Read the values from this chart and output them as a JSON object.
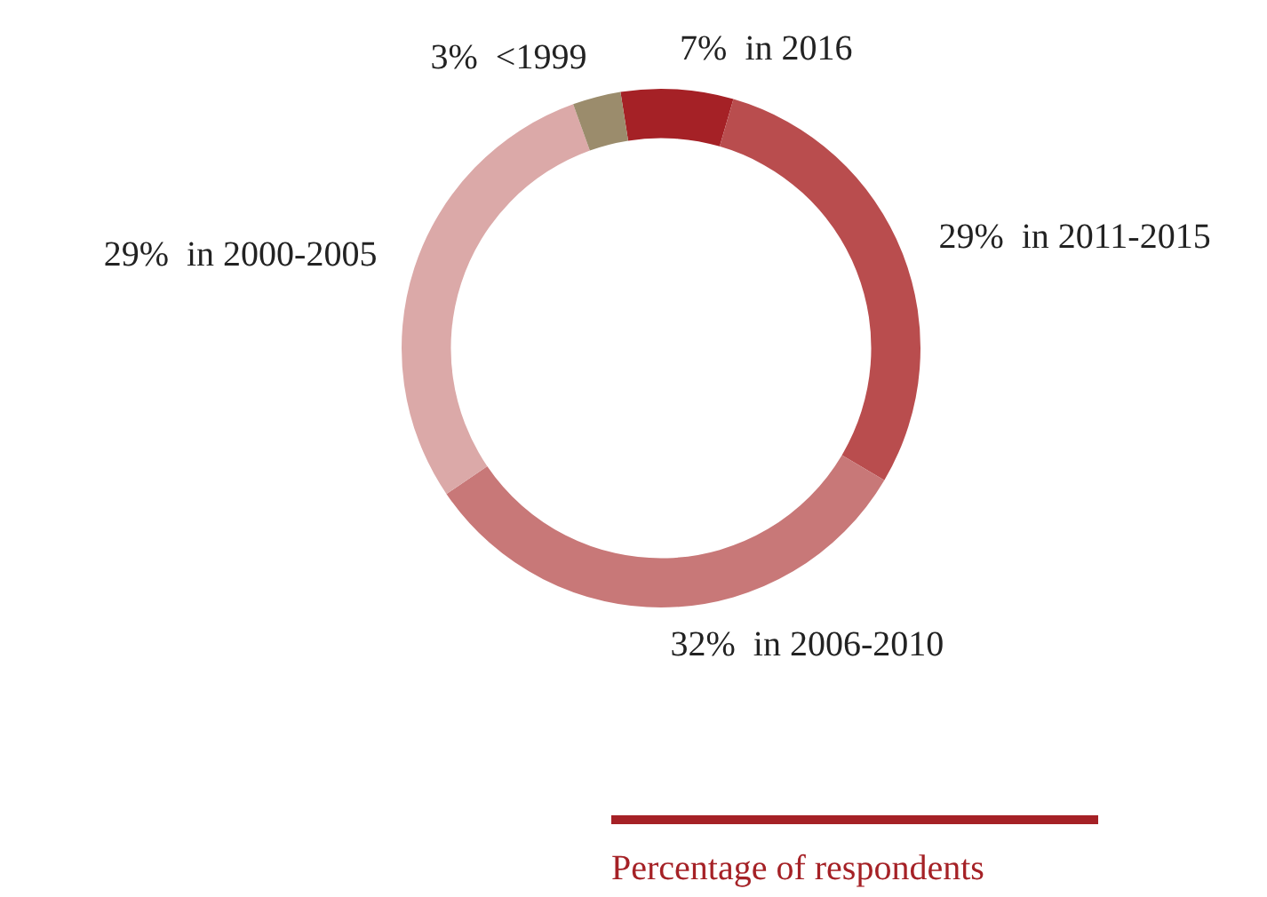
{
  "chart_data": {
    "type": "donut",
    "categories": [
      "in 2016",
      "in 2011-2015",
      "in 2006-2010",
      "in 2000-2005",
      "<1999"
    ],
    "values": [
      7,
      29,
      32,
      29,
      3
    ],
    "value_labels": [
      "7%",
      "29%",
      "32%",
      "29%",
      "3%"
    ],
    "colors": [
      "#a52126",
      "#b94d4e",
      "#c87878",
      "#dba9a8",
      "#9b8c6c"
    ],
    "legend": false,
    "annotations": [
      "Percentage of respondents"
    ]
  }
}
